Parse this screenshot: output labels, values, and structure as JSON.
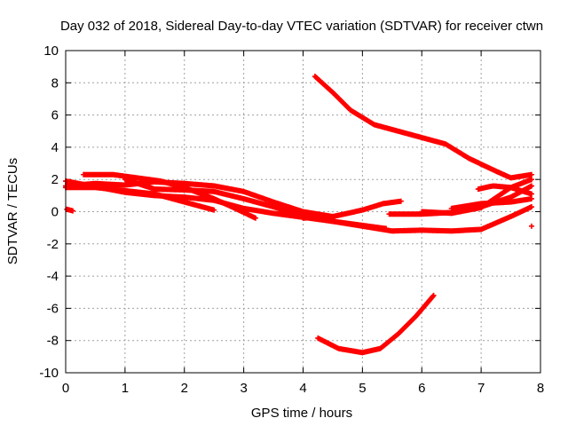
{
  "chart_data": {
    "type": "scatter",
    "title": "Day 032 of 2018, Sidereal Day-to-day VTEC variation (SDTVAR) for receiver ctwn",
    "xlabel": "GPS time / hours",
    "ylabel": "SDTVAR / TECUs",
    "xlim": [
      0,
      8
    ],
    "ylim": [
      -10,
      10
    ],
    "xticks": [
      "0",
      "1",
      "2",
      "3",
      "4",
      "5",
      "6",
      "7",
      "8"
    ],
    "yticks": [
      "10",
      "8",
      "6",
      "4",
      "2",
      "0",
      "-2",
      "-4",
      "-6",
      "-8",
      "-10"
    ],
    "grid": true,
    "marker": "plus",
    "color": "#ff0000",
    "series": [
      {
        "values": [
          [
            0.0,
            1.6
          ],
          [
            0.5,
            1.75
          ],
          [
            1.0,
            1.65
          ],
          [
            1.5,
            1.85
          ],
          [
            2.0,
            1.75
          ],
          [
            2.5,
            1.6
          ],
          [
            3.0,
            1.25
          ],
          [
            3.5,
            0.6
          ],
          [
            4.0,
            0.0
          ],
          [
            4.5,
            -0.3
          ]
        ]
      },
      {
        "values": [
          [
            0.0,
            1.9
          ],
          [
            0.5,
            1.55
          ],
          [
            1.0,
            1.2
          ],
          [
            1.5,
            1.0
          ],
          [
            2.0,
            0.9
          ],
          [
            2.5,
            0.7
          ],
          [
            3.0,
            0.2
          ],
          [
            3.5,
            -0.1
          ],
          [
            4.0,
            -0.35
          ],
          [
            4.5,
            -0.6
          ],
          [
            5.0,
            -0.85
          ],
          [
            5.4,
            -1.05
          ]
        ]
      },
      {
        "values": [
          [
            0.3,
            2.3
          ],
          [
            0.8,
            2.3
          ],
          [
            1.2,
            2.1
          ],
          [
            1.6,
            1.9
          ],
          [
            2.0,
            1.5
          ],
          [
            2.5,
            0.8
          ],
          [
            2.8,
            0.3
          ],
          [
            3.2,
            -0.4
          ]
        ]
      },
      {
        "values": [
          [
            0.0,
            1.5
          ],
          [
            0.5,
            1.5
          ],
          [
            1.0,
            1.3
          ],
          [
            1.5,
            1.1
          ],
          [
            2.0,
            0.6
          ],
          [
            2.5,
            0.1
          ]
        ]
      },
      {
        "values": [
          [
            1.0,
            2.0
          ],
          [
            1.5,
            1.4
          ],
          [
            2.0,
            1.35
          ],
          [
            2.5,
            1.25
          ],
          [
            3.0,
            0.8
          ],
          [
            3.5,
            0.3
          ],
          [
            4.0,
            -0.3
          ],
          [
            4.5,
            -0.6
          ],
          [
            5.0,
            -0.9
          ],
          [
            5.5,
            -1.2
          ],
          [
            6.0,
            -1.15
          ],
          [
            6.5,
            -1.2
          ],
          [
            7.0,
            -1.1
          ],
          [
            7.5,
            -0.3
          ],
          [
            7.85,
            0.3
          ]
        ]
      },
      {
        "values": [
          [
            4.0,
            -0.4
          ],
          [
            4.5,
            -0.3
          ],
          [
            5.0,
            0.1
          ],
          [
            5.35,
            0.5
          ],
          [
            5.65,
            0.65
          ]
        ]
      },
      {
        "values": [
          [
            5.45,
            -0.15
          ],
          [
            6.0,
            -0.15
          ],
          [
            6.5,
            -0.05
          ],
          [
            7.0,
            0.3
          ],
          [
            7.5,
            0.9
          ],
          [
            7.85,
            1.6
          ]
        ]
      },
      {
        "values": [
          [
            6.5,
            0.2
          ],
          [
            7.0,
            0.5
          ],
          [
            7.5,
            0.6
          ],
          [
            7.85,
            0.8
          ]
        ]
      },
      {
        "values": [
          [
            6.0,
            0.0
          ],
          [
            6.5,
            -0.1
          ],
          [
            7.0,
            0.25
          ],
          [
            7.5,
            1.5
          ],
          [
            7.85,
            2.0
          ]
        ]
      },
      {
        "values": [
          [
            6.95,
            1.4
          ],
          [
            7.2,
            1.6
          ],
          [
            7.5,
            1.5
          ],
          [
            7.85,
            1.1
          ]
        ]
      },
      {
        "values": [
          [
            0.02,
            0.15
          ],
          [
            0.12,
            0.05
          ]
        ]
      },
      {
        "values": [
          [
            4.2,
            8.4
          ],
          [
            4.5,
            7.4
          ],
          [
            4.8,
            6.3
          ],
          [
            5.2,
            5.4
          ],
          [
            5.6,
            5.0
          ],
          [
            6.0,
            4.6
          ],
          [
            6.4,
            4.2
          ],
          [
            6.8,
            3.3
          ],
          [
            7.2,
            2.6
          ],
          [
            7.5,
            2.1
          ],
          [
            7.85,
            2.3
          ]
        ]
      },
      {
        "values": [
          [
            4.25,
            -7.85
          ],
          [
            4.6,
            -8.5
          ],
          [
            5.0,
            -8.75
          ],
          [
            5.3,
            -8.5
          ],
          [
            5.6,
            -7.6
          ],
          [
            5.9,
            -6.5
          ],
          [
            6.2,
            -5.2
          ]
        ]
      },
      {
        "values": [
          [
            7.85,
            -0.9
          ]
        ]
      }
    ]
  }
}
